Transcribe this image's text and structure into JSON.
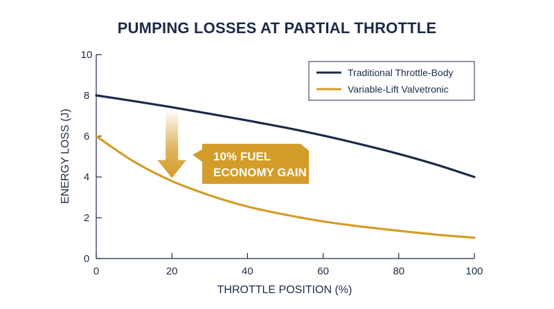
{
  "chart_data": {
    "type": "line",
    "title": "PUMPING LOSSES AT PARTIAL THROTTLE",
    "xlabel": "THROTTLE POSITION (%)",
    "ylabel": "ENERGY LOSS (J)",
    "xlim": [
      0,
      100
    ],
    "ylim": [
      0,
      10
    ],
    "x_ticks": [
      0,
      20,
      40,
      60,
      80,
      100
    ],
    "y_ticks": [
      0,
      2,
      4,
      6,
      8,
      10
    ],
    "grid": false,
    "legend_position": "top-right",
    "series": [
      {
        "name": "Traditional Throttle-Body",
        "color": "#1b2a47",
        "x": [
          0,
          10,
          20,
          30,
          40,
          50,
          60,
          70,
          80,
          90,
          100
        ],
        "y": [
          8.0,
          7.72,
          7.42,
          7.1,
          6.77,
          6.42,
          6.03,
          5.6,
          5.13,
          4.6,
          4.0
        ]
      },
      {
        "name": "Variable-Lift Valvetronic",
        "color": "#d49c28",
        "x": [
          0,
          10,
          20,
          30,
          40,
          50,
          60,
          70,
          80,
          90,
          100
        ],
        "y": [
          6.0,
          4.75,
          3.8,
          3.1,
          2.55,
          2.15,
          1.82,
          1.57,
          1.36,
          1.17,
          1.02
        ]
      }
    ],
    "annotation": {
      "lines": [
        "10% FUEL",
        "ECONOMY GAIN"
      ],
      "color": "#d49c28",
      "arrow_x": 20,
      "arrow_from_y": 7.45,
      "arrow_to_y": 3.95
    }
  }
}
